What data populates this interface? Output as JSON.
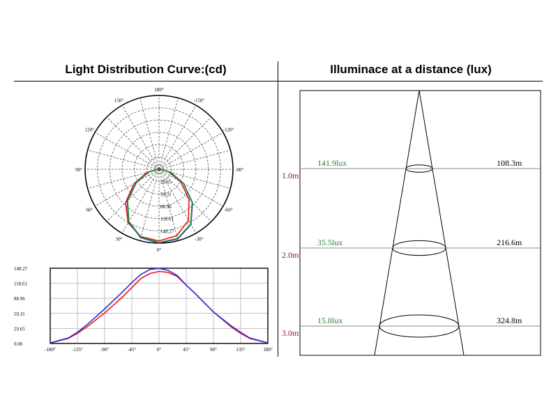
{
  "left_panel": {
    "title": "Light Distribution Curve:(cd)"
  },
  "right_panel": {
    "title": "Illuminace at a distance (lux)"
  },
  "colors": {
    "red_series": "#e8141a",
    "blue_series": "#2b2bd6",
    "green_series": "#1c8a2e",
    "distance_text": "#8b1a1a",
    "lux_text": "#2e7d32",
    "grid": "#555555"
  },
  "chart_data": [
    {
      "type": "polar",
      "angle_labels": [
        "180°",
        "150°",
        "120°",
        "90°",
        "60°",
        "30°",
        "0°",
        "-30°",
        "-60°",
        "-90°",
        "-120°",
        "-150°"
      ],
      "radial_labels": [
        "29.65",
        "59.31",
        "88.96",
        "118.61",
        "148.27"
      ],
      "rlim": [
        0,
        148.27
      ],
      "series": [
        {
          "color": "red",
          "angles": [
            -90,
            -75,
            -60,
            -45,
            -30,
            -15,
            0,
            15,
            30,
            45,
            60,
            75,
            90
          ],
          "values": [
            3,
            20,
            50,
            85,
            118,
            138,
            144,
            140,
            124,
            95,
            58,
            25,
            4
          ]
        },
        {
          "color": "blue",
          "angles": [
            -90,
            -75,
            -60,
            -45,
            -30,
            -15,
            0,
            15,
            30,
            45,
            60,
            75,
            90
          ],
          "values": [
            4,
            24,
            57,
            95,
            128,
            145,
            148,
            142,
            122,
            90,
            53,
            22,
            3
          ]
        },
        {
          "color": "green",
          "angles": [
            -90,
            -75,
            -60,
            -45,
            -30,
            -15,
            0,
            15,
            30,
            45,
            60,
            75,
            90
          ],
          "values": [
            4,
            23,
            56,
            94,
            127,
            144,
            147,
            141,
            121,
            89,
            52,
            21,
            3
          ]
        }
      ]
    },
    {
      "type": "line",
      "x_tick_labels": [
        "-180°",
        "-135°",
        "-90°",
        "-45°",
        "0°",
        "45°",
        "90°",
        "135°",
        "180°"
      ],
      "y_tick_labels": [
        "148.27",
        "118.61",
        "88.96",
        "59.31",
        "29.65",
        "0.00"
      ],
      "xlim": [
        -180,
        180
      ],
      "ylim": [
        0,
        148.27
      ],
      "grid": true,
      "series": [
        {
          "color": "red",
          "x": [
            -180,
            -150,
            -135,
            -120,
            -90,
            -60,
            -45,
            -30,
            -15,
            0,
            15,
            30,
            45,
            60,
            90,
            120,
            135,
            150,
            180
          ],
          "y": [
            1,
            10,
            20,
            32,
            60,
            92,
            110,
            128,
            138,
            142,
            140,
            132,
            115,
            98,
            62,
            32,
            20,
            10,
            1
          ]
        },
        {
          "color": "blue",
          "x": [
            -180,
            -150,
            -135,
            -120,
            -90,
            -60,
            -45,
            -30,
            -15,
            0,
            15,
            30,
            45,
            60,
            90,
            120,
            135,
            150,
            180
          ],
          "y": [
            1,
            11,
            22,
            36,
            68,
            102,
            120,
            136,
            146,
            148,
            144,
            134,
            115,
            98,
            62,
            34,
            22,
            11,
            1
          ]
        }
      ]
    },
    {
      "type": "illuminance-cone",
      "rows": [
        {
          "distance": "1.0m",
          "lux": "141.9lux",
          "diameter": "108.3m"
        },
        {
          "distance": "2.0m",
          "lux": "35.5lux",
          "diameter": "216.6m"
        },
        {
          "distance": "3.0m",
          "lux": "15.8lux",
          "diameter": "324.8m"
        }
      ]
    }
  ]
}
